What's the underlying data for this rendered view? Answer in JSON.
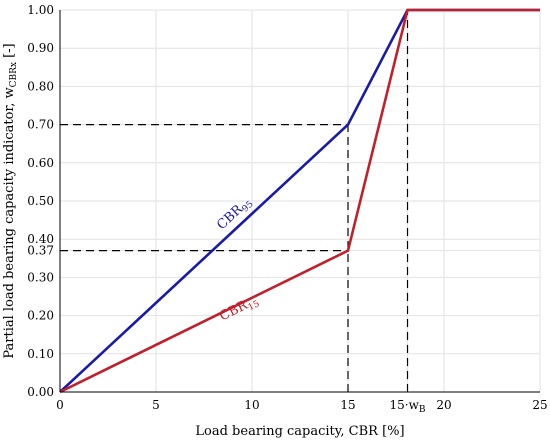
{
  "chart_data": {
    "type": "line",
    "xlabel": "Load bearing capacity, CBR [%]",
    "ylabel": {
      "main": "Partial load bearing capacity indicator, w",
      "sub": "CBRx",
      "unit": " [-]"
    },
    "xlim": [
      0,
      25
    ],
    "ylim": [
      0,
      1
    ],
    "grid": true,
    "x_ticks": [
      {
        "value": 0,
        "label": "0"
      },
      {
        "value": 5,
        "label": "5"
      },
      {
        "value": 10,
        "label": "10"
      },
      {
        "value": 15,
        "label": "15"
      },
      {
        "value": 18.1,
        "label": "15·w",
        "sub": "B"
      },
      {
        "value": 20,
        "label": "20"
      },
      {
        "value": 25,
        "label": "25"
      }
    ],
    "y_ticks": [
      {
        "value": 0.0,
        "label": "0.00"
      },
      {
        "value": 0.1,
        "label": "0.10"
      },
      {
        "value": 0.2,
        "label": "0.20"
      },
      {
        "value": 0.3,
        "label": "0.30"
      },
      {
        "value": 0.37,
        "label": "0.37"
      },
      {
        "value": 0.4,
        "label": "0.40"
      },
      {
        "value": 0.5,
        "label": "0.50"
      },
      {
        "value": 0.6,
        "label": "0.60"
      },
      {
        "value": 0.7,
        "label": "0.70"
      },
      {
        "value": 0.8,
        "label": "0.80"
      },
      {
        "value": 0.9,
        "label": "0.90"
      },
      {
        "value": 1.0,
        "label": "1.00"
      }
    ],
    "series": [
      {
        "name": "CBR",
        "sub": "95",
        "color": "#1a1aaa",
        "points": [
          [
            0,
            0
          ],
          [
            15,
            0.7
          ],
          [
            18.1,
            1.0
          ],
          [
            25,
            1.0
          ]
        ],
        "label_at": [
          9.2,
          0.46
        ]
      },
      {
        "name": "CBR",
        "sub": "15",
        "color": "#c0202a",
        "points": [
          [
            0,
            0
          ],
          [
            15,
            0.37
          ],
          [
            18.1,
            1.0
          ],
          [
            25,
            1.0
          ]
        ],
        "label_at": [
          9.4,
          0.21
        ]
      }
    ],
    "reference_lines": [
      {
        "kind": "h",
        "y": 0.7,
        "x_from": 0,
        "x_to": 15
      },
      {
        "kind": "h",
        "y": 0.37,
        "x_from": 0,
        "x_to": 15
      },
      {
        "kind": "v",
        "x": 15,
        "y_from": 0,
        "y_to": 0.7
      },
      {
        "kind": "v",
        "x": 18.1,
        "y_from": 0,
        "y_to": 1.0
      }
    ]
  }
}
